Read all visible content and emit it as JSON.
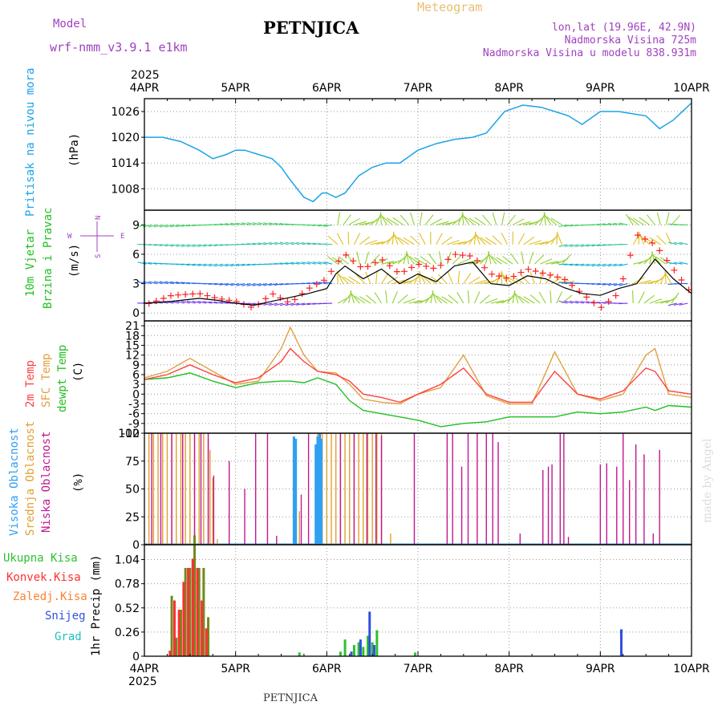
{
  "header": {
    "model_label": "Model",
    "model_name": "wrf-nmm_v3.9.1 e1km",
    "station": "PETNJICA",
    "product": "Meteogram",
    "coords": "lon,lat (19.96E, 42.9N)",
    "altitude": "Nadmorska Visina 725m",
    "model_altitude": "Nadmorska Visina u modelu 838.931m",
    "footer_station": "PETNJICA",
    "credit": "made by Angel"
  },
  "time_axis": {
    "year": "2025",
    "labels": [
      "4APR",
      "5APR",
      "6APR",
      "7APR",
      "8APR",
      "9APR",
      "10APR"
    ]
  },
  "colors": {
    "pressure": "#1aa3e8",
    "wind_speed": "#000000",
    "gust": "#ff2020",
    "temp2m": "#ff4040",
    "sfc_temp": "#e0a040",
    "dewpoint": "#20c020",
    "cloud_high": "#30a0f0",
    "cloud_mid": "#e0a030",
    "cloud_low": "#c01890",
    "rain_total": "#30c030",
    "rain_conv": "#ff3030",
    "rain_freeze": "#ff8030",
    "snow": "#3050e0",
    "hail": "#20c0c0"
  },
  "chart_data": [
    {
      "type": "line",
      "ylabel_side": "Pritisak na nivou mora",
      "unit": "(hPa)",
      "yticks": [
        "1008",
        "1014",
        "1020",
        "1026"
      ],
      "ylim": [
        1003,
        1029
      ],
      "x_days": [
        0,
        0.2,
        0.4,
        0.6,
        0.75,
        0.9,
        1.0,
        1.1,
        1.25,
        1.4,
        1.5,
        1.6,
        1.75,
        1.85,
        1.95,
        2.0,
        2.1,
        2.2,
        2.35,
        2.5,
        2.65,
        2.8,
        3.0,
        3.2,
        3.4,
        3.6,
        3.75,
        3.95,
        4.15,
        4.35,
        4.5,
        4.65,
        4.8,
        5.0,
        5.2,
        5.35,
        5.5,
        5.65,
        5.8,
        6.0
      ],
      "series": [
        {
          "values": [
            1020,
            1020,
            1019,
            1017,
            1015,
            1016,
            1017,
            1017,
            1016,
            1015,
            1013,
            1010,
            1006,
            1005,
            1007,
            1007,
            1006,
            1007,
            1011,
            1013,
            1014,
            1014,
            1017,
            1018.5,
            1019.5,
            1020,
            1021,
            1026,
            1027.5,
            1027,
            1026,
            1025,
            1023,
            1026,
            1026,
            1025.5,
            1025,
            1022,
            1024,
            1028
          ]
        }
      ]
    },
    {
      "type": "line",
      "ylabel_side": [
        "10m Vjetar",
        "Brzina i Pravac"
      ],
      "unit": "(m/s)",
      "compass": [
        "N",
        "W",
        "E",
        "S"
      ],
      "yticks": [
        "0",
        "3",
        "6",
        "9"
      ],
      "ylim": [
        -0.8,
        10.5
      ],
      "x_days": [
        0,
        0.3,
        0.6,
        0.8,
        1.0,
        1.2,
        1.4,
        1.6,
        1.8,
        2.0,
        2.1,
        2.2,
        2.4,
        2.6,
        2.8,
        3.0,
        3.2,
        3.4,
        3.6,
        3.8,
        4.0,
        4.2,
        4.4,
        4.6,
        4.8,
        5.0,
        5.2,
        5.4,
        5.6,
        5.8,
        6.0
      ],
      "series": [
        {
          "values": [
            1.0,
            1.2,
            1.5,
            1.3,
            1.0,
            0.8,
            1.2,
            1.6,
            2.0,
            2.5,
            4.0,
            4.8,
            3.5,
            4.5,
            3.0,
            4.0,
            3.2,
            4.8,
            5.2,
            3.0,
            2.8,
            3.8,
            3.5,
            2.6,
            2.0,
            1.8,
            2.5,
            3.0,
            5.5,
            3.5,
            2.0
          ]
        },
        {
          "values": [
            0.8,
            1.8,
            2.0,
            1.5,
            1.2,
            0.5,
            2.0,
            1.0,
            2.5,
            3.5,
            5.0,
            6.0,
            4.5,
            5.5,
            4.0,
            5.0,
            4.5,
            6.0,
            5.8,
            4.0,
            3.5,
            4.5,
            4.0,
            3.5,
            2.0,
            0.5,
            2.0,
            8.0,
            7.0,
            4.5,
            2.0
          ]
        }
      ],
      "barb_rows": [
        1,
        3,
        5,
        7,
        9
      ]
    },
    {
      "type": "line",
      "ylabel_side": [
        "2m Temp",
        "SFC Temp",
        "dewpt Temp"
      ],
      "unit": "(C)",
      "yticks": [
        "-12",
        "-9",
        "-6",
        "-3",
        "0",
        "3",
        "6",
        "9",
        "12",
        "15",
        "18",
        "21"
      ],
      "ylim": [
        -12,
        22.5
      ],
      "x_days": [
        0,
        0.25,
        0.5,
        0.75,
        1.0,
        1.25,
        1.5,
        1.6,
        1.75,
        1.9,
        2.1,
        2.25,
        2.4,
        2.6,
        2.8,
        3.0,
        3.25,
        3.5,
        3.75,
        4.0,
        4.25,
        4.5,
        4.75,
        5.0,
        5.25,
        5.5,
        5.6,
        5.75,
        6.0
      ],
      "series": [
        {
          "values": [
            4.5,
            6,
            9,
            6,
            3.5,
            5,
            10,
            14,
            10,
            7,
            6,
            4,
            0,
            -1,
            -2.5,
            0,
            3,
            8,
            0,
            -2.5,
            -2.5,
            7,
            0,
            -1.5,
            1,
            8,
            7,
            1,
            0
          ]
        },
        {
          "values": [
            5,
            7,
            11,
            7,
            3,
            4,
            14,
            20.5,
            12,
            7,
            6.5,
            3,
            -1.5,
            -2.5,
            -3,
            0,
            2,
            12,
            -0.5,
            -3,
            -3,
            13,
            0,
            -2,
            0,
            12,
            14,
            0,
            -1
          ]
        },
        {
          "values": [
            4.5,
            5,
            6.5,
            4,
            2,
            3.5,
            4,
            4,
            3.5,
            5,
            3,
            -2,
            -5,
            -6,
            -7,
            -8,
            -10,
            -9,
            -8.5,
            -7,
            -7,
            -7,
            -5.5,
            -6,
            -5.5,
            -4,
            -5,
            -3.5,
            -4
          ]
        }
      ]
    },
    {
      "type": "bar",
      "ylabel_side": [
        "Visoka Oblacnost",
        "Srednja Oblacnost",
        "Niska Oblacnost"
      ],
      "unit": "(%)",
      "yticks": [
        "0",
        "25",
        "50",
        "75",
        "100"
      ],
      "ylim": [
        0,
        100
      ],
      "series": [
        {
          "name": "mid",
          "x": [
            0.05,
            0.1,
            0.15,
            0.2,
            0.25,
            0.3,
            0.35,
            0.4,
            0.45,
            0.5,
            0.55,
            0.6,
            0.65,
            0.7,
            0.72,
            0.75,
            0.8,
            1.65,
            1.7,
            1.9,
            1.95,
            2.0,
            2.05,
            2.1,
            2.15,
            2.2,
            2.25,
            2.3,
            2.35,
            2.4,
            2.45,
            2.5,
            2.55,
            2.6,
            2.7
          ],
          "values": [
            100,
            100,
            100,
            100,
            100,
            100,
            100,
            100,
            100,
            100,
            100,
            100,
            100,
            95,
            85,
            60,
            5,
            8,
            30,
            100,
            100,
            100,
            100,
            100,
            100,
            100,
            100,
            100,
            100,
            100,
            100,
            100,
            100,
            100,
            10
          ]
        },
        {
          "name": "low",
          "x": [
            0.08,
            0.18,
            0.3,
            0.42,
            0.55,
            0.62,
            0.7,
            0.76,
            0.93,
            1.1,
            1.22,
            1.35,
            1.45,
            1.72,
            1.8,
            1.93,
            2.15,
            2.3,
            2.44,
            2.54,
            2.6,
            2.96,
            3.32,
            3.38,
            3.48,
            3.55,
            3.65,
            3.75,
            3.82,
            3.88,
            4.12,
            4.37,
            4.43,
            4.47,
            4.56,
            4.6,
            4.65,
            5.0,
            5.07,
            5.18,
            5.25,
            5.32,
            5.39,
            5.48,
            5.58,
            5.65
          ],
          "values": [
            100,
            100,
            100,
            100,
            100,
            100,
            100,
            62,
            75,
            50,
            100,
            100,
            8,
            45,
            100,
            100,
            100,
            100,
            100,
            100,
            98,
            100,
            100,
            100,
            70,
            100,
            100,
            100,
            100,
            92,
            10,
            67,
            70,
            72,
            100,
            100,
            7,
            72,
            73,
            70,
            100,
            58,
            90,
            81,
            10,
            85
          ]
        },
        {
          "name": "high",
          "x": [
            1.64,
            1.66,
            1.88,
            1.9,
            1.92,
            1.94
          ],
          "values": [
            97,
            95,
            90,
            97,
            100,
            95
          ]
        }
      ]
    },
    {
      "type": "bar",
      "ylabel_side": [
        "Ukupna Kisa",
        "Konvek.Kisa",
        "Zaledj.Kisa",
        "Snijeg",
        "Grad"
      ],
      "unit": "1hr Precip (mm)",
      "yticks": [
        "0",
        "0.26",
        "0.52",
        "0.78",
        "1.04"
      ],
      "ylim": [
        0,
        1.2
      ],
      "series": [
        {
          "name": "total",
          "x": [
            0.3,
            0.35,
            0.4,
            0.45,
            0.5,
            0.55,
            0.6,
            0.65,
            0.7,
            1.7,
            2.15,
            2.2,
            2.3,
            2.35,
            2.4,
            2.45,
            2.5,
            2.55,
            2.97
          ],
          "values": [
            0.65,
            0.2,
            0.5,
            0.95,
            0.95,
            1.3,
            0.95,
            0.95,
            0.42,
            0.04,
            0.05,
            0.18,
            0.12,
            0.15,
            0.1,
            0.22,
            0.15,
            0.28,
            0.04
          ]
        },
        {
          "name": "conv",
          "x": [
            0.28,
            0.33,
            0.38,
            0.43,
            0.48,
            0.53,
            0.58,
            0.63,
            0.68
          ],
          "values": [
            0.06,
            0.6,
            0.5,
            0.8,
            0.95,
            1.05,
            0.95,
            0.6,
            0.3
          ]
        },
        {
          "name": "snow",
          "x": [
            2.27,
            2.37,
            2.47,
            2.52,
            5.23
          ],
          "values": [
            0.05,
            0.18,
            0.48,
            0.12,
            0.29
          ]
        }
      ]
    }
  ]
}
